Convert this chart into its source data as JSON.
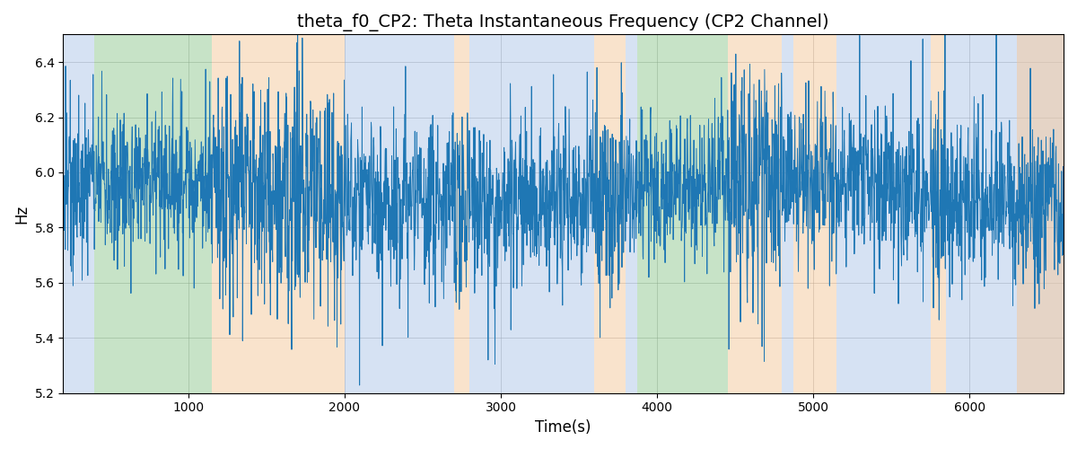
{
  "title": "theta_f0_CP2: Theta Instantaneous Frequency (CP2 Channel)",
  "xlabel": "Time(s)",
  "ylabel": "Hz",
  "xlim": [
    200,
    6600
  ],
  "ylim": [
    5.2,
    6.5
  ],
  "line_color": "#1f77b4",
  "line_width": 0.7,
  "bg_regions": [
    {
      "xmin": 200,
      "xmax": 400,
      "color": "#aec6e8",
      "alpha": 0.5
    },
    {
      "xmin": 400,
      "xmax": 1150,
      "color": "#90c990",
      "alpha": 0.5
    },
    {
      "xmin": 1150,
      "xmax": 2000,
      "color": "#f5c89a",
      "alpha": 0.5
    },
    {
      "xmin": 2000,
      "xmax": 2700,
      "color": "#aec6e8",
      "alpha": 0.5
    },
    {
      "xmin": 2700,
      "xmax": 2800,
      "color": "#f5c89a",
      "alpha": 0.5
    },
    {
      "xmin": 2800,
      "xmax": 3600,
      "color": "#aec6e8",
      "alpha": 0.5
    },
    {
      "xmin": 3600,
      "xmax": 3800,
      "color": "#f5c89a",
      "alpha": 0.5
    },
    {
      "xmin": 3800,
      "xmax": 3870,
      "color": "#aec6e8",
      "alpha": 0.5
    },
    {
      "xmin": 3870,
      "xmax": 4450,
      "color": "#90c990",
      "alpha": 0.5
    },
    {
      "xmin": 4450,
      "xmax": 4800,
      "color": "#f5c89a",
      "alpha": 0.5
    },
    {
      "xmin": 4800,
      "xmax": 4870,
      "color": "#aec6e8",
      "alpha": 0.5
    },
    {
      "xmin": 4870,
      "xmax": 5150,
      "color": "#f5c89a",
      "alpha": 0.5
    },
    {
      "xmin": 5150,
      "xmax": 5750,
      "color": "#aec6e8",
      "alpha": 0.5
    },
    {
      "xmin": 5750,
      "xmax": 5850,
      "color": "#f5c89a",
      "alpha": 0.5
    },
    {
      "xmin": 5850,
      "xmax": 6600,
      "color": "#aec6e8",
      "alpha": 0.5
    },
    {
      "xmin": 6300,
      "xmax": 6600,
      "color": "#f5c89a",
      "alpha": 0.5
    }
  ],
  "seed": 7,
  "n_points": 3200,
  "mean_freq": 5.93,
  "title_fontsize": 14
}
